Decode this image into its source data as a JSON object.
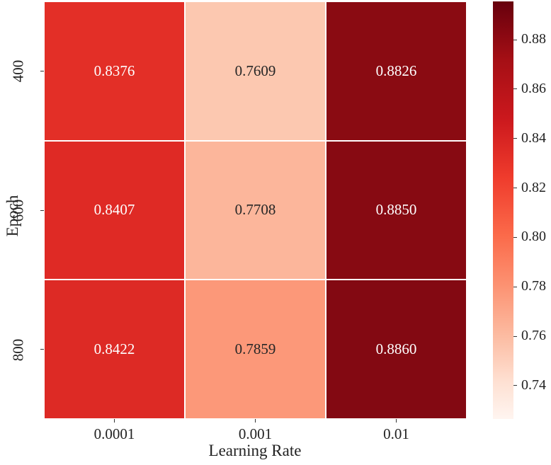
{
  "chart_data": {
    "type": "heatmap",
    "title": "",
    "xlabel": "Learning Rate",
    "ylabel": "Epoch",
    "x_categories": [
      "0.0001",
      "0.001",
      "0.01"
    ],
    "y_categories": [
      "400",
      "600",
      "800"
    ],
    "values": [
      [
        0.8376,
        0.7609,
        0.8826
      ],
      [
        0.8407,
        0.7708,
        0.885
      ],
      [
        0.8422,
        0.7859,
        0.886
      ]
    ],
    "cell_colors": [
      [
        "#e32f27",
        "#fcc8b0",
        "#8a0b12"
      ],
      [
        "#df2a25",
        "#fcb69b",
        "#870a12"
      ],
      [
        "#dd2a25",
        "#fc9879",
        "#830912"
      ]
    ],
    "text_colors": [
      [
        "#ffffff",
        "#262626",
        "#ffffff"
      ],
      [
        "#ffffff",
        "#262626",
        "#ffffff"
      ],
      [
        "#ffffff",
        "#262626",
        "#ffffff"
      ]
    ],
    "colormap": "Reds",
    "colorbar": {
      "range": [
        0.7265,
        0.8955
      ],
      "ticks": [
        "0.74",
        "0.76",
        "0.78",
        "0.80",
        "0.82",
        "0.84",
        "0.86",
        "0.88"
      ],
      "tick_values": [
        0.74,
        0.76,
        0.78,
        0.8,
        0.82,
        0.84,
        0.86,
        0.88
      ]
    },
    "grid": false,
    "legend_position": "right (colorbar)"
  }
}
